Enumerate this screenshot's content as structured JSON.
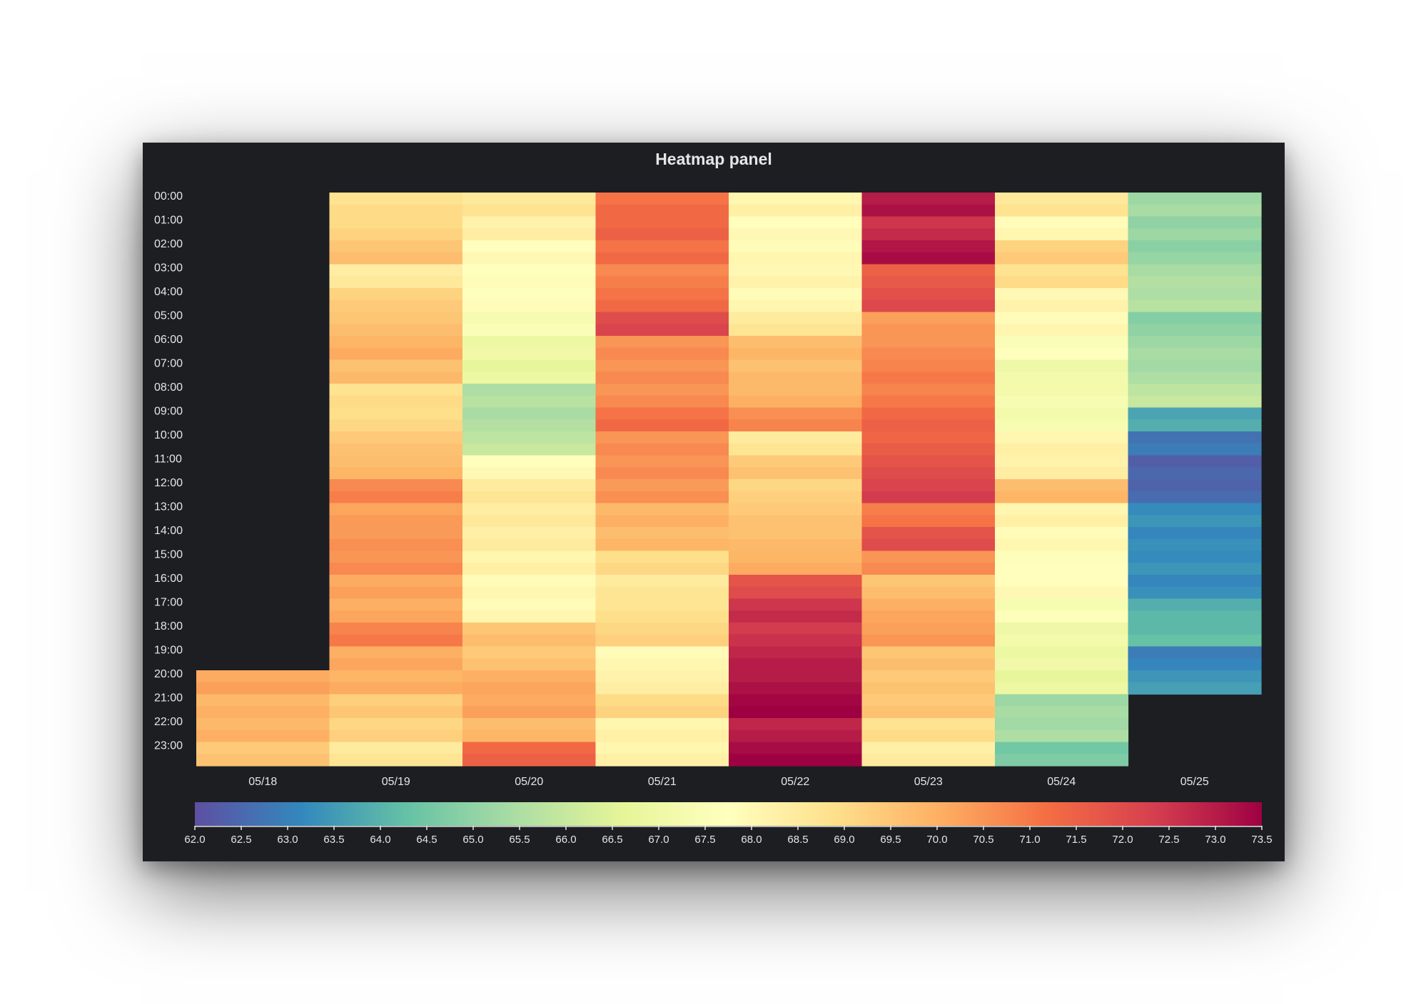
{
  "panel": {
    "title": "Heatmap panel"
  },
  "chart_data": {
    "type": "heatmap",
    "title": "Heatmap panel",
    "x_categories": [
      "05/18",
      "05/19",
      "05/20",
      "05/21",
      "05/22",
      "05/23",
      "05/24",
      "05/25"
    ],
    "y_categories": [
      "00:00",
      "01:00",
      "02:00",
      "03:00",
      "04:00",
      "05:00",
      "06:00",
      "07:00",
      "08:00",
      "09:00",
      "10:00",
      "11:00",
      "12:00",
      "13:00",
      "14:00",
      "15:00",
      "16:00",
      "17:00",
      "18:00",
      "19:00",
      "20:00",
      "21:00",
      "22:00",
      "23:00"
    ],
    "values": [
      [
        null,
        68.9,
        68.7,
        71.2,
        68.2,
        73.1,
        68.7,
        65.3
      ],
      [
        null,
        69.1,
        68.3,
        71.4,
        67.9,
        72.6,
        68.0,
        65.1
      ],
      [
        null,
        69.6,
        67.9,
        71.2,
        68.0,
        73.2,
        69.3,
        65.0
      ],
      [
        null,
        68.5,
        67.8,
        70.8,
        68.1,
        71.6,
        68.9,
        65.5
      ],
      [
        null,
        69.3,
        67.8,
        71.2,
        68.0,
        72.0,
        68.1,
        65.6
      ],
      [
        null,
        69.6,
        67.4,
        72.1,
        68.6,
        70.4,
        68.0,
        64.9
      ],
      [
        null,
        70.0,
        67.0,
        70.6,
        69.8,
        70.6,
        67.6,
        65.3
      ],
      [
        null,
        69.7,
        66.8,
        70.6,
        69.7,
        70.9,
        67.1,
        65.4
      ],
      [
        null,
        68.9,
        65.6,
        70.6,
        69.9,
        70.9,
        67.3,
        65.9
      ],
      [
        null,
        69.0,
        65.5,
        71.2,
        70.7,
        71.4,
        67.3,
        63.8
      ],
      [
        null,
        69.5,
        65.9,
        70.6,
        68.6,
        71.5,
        68.2,
        62.8
      ],
      [
        null,
        69.8,
        67.9,
        70.6,
        69.5,
        71.9,
        68.3,
        62.4
      ],
      [
        null,
        70.8,
        68.6,
        70.5,
        69.2,
        72.3,
        69.8,
        62.5
      ],
      [
        null,
        70.3,
        68.5,
        69.9,
        69.5,
        71.0,
        68.2,
        63.3
      ],
      [
        null,
        70.5,
        68.4,
        69.8,
        69.7,
        71.9,
        68.0,
        63.2
      ],
      [
        null,
        70.6,
        68.2,
        69.0,
        70.0,
        70.6,
        67.7,
        63.3
      ],
      [
        null,
        70.2,
        68.0,
        68.6,
        71.9,
        69.6,
        67.9,
        63.2
      ],
      [
        null,
        70.1,
        68.0,
        68.8,
        72.6,
        70.1,
        67.5,
        64.0
      ],
      [
        null,
        70.9,
        69.6,
        69.2,
        72.5,
        70.4,
        67.1,
        64.2
      ],
      [
        null,
        70.1,
        69.5,
        68.0,
        72.9,
        69.6,
        67.0,
        63.0
      ],
      [
        70.2,
        70.0,
        70.1,
        68.3,
        73.1,
        69.5,
        66.8,
        63.5
      ],
      [
        69.9,
        69.4,
        70.2,
        69.1,
        73.5,
        69.5,
        65.3,
        null
      ],
      [
        69.9,
        69.2,
        69.8,
        68.2,
        72.9,
        68.9,
        65.4,
        null
      ],
      [
        69.5,
        68.6,
        71.4,
        68.2,
        73.4,
        68.4,
        64.6,
        null
      ]
    ],
    "colorbar": {
      "min": 62.0,
      "max": 73.5,
      "ticks": [
        "62.0",
        "62.5",
        "63.0",
        "63.5",
        "64.0",
        "64.5",
        "65.0",
        "65.5",
        "66.0",
        "66.5",
        "67.0",
        "67.5",
        "68.0",
        "68.5",
        "69.0",
        "69.5",
        "70.0",
        "70.5",
        "71.0",
        "71.5",
        "72.0",
        "72.5",
        "73.0",
        "73.5"
      ]
    },
    "colorscale": "Spectral (reversed)",
    "grid": false,
    "legend_placement": "bottom"
  }
}
